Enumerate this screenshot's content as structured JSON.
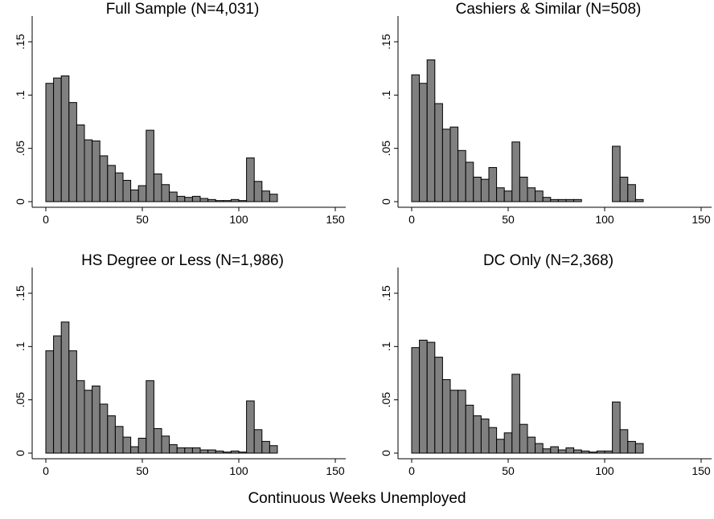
{
  "x_label": "Continuous Weeks Unemployed",
  "chart_data": [
    {
      "type": "histogram",
      "title": "Full Sample (N=4,031)",
      "color": "#808080",
      "bins": [
        0,
        4,
        8,
        12,
        16,
        20,
        24,
        28,
        32,
        36,
        40,
        44,
        48,
        52,
        56,
        60,
        64,
        68,
        72,
        76,
        80,
        84,
        88,
        92,
        96,
        100,
        104,
        108,
        112,
        116,
        120
      ],
      "values": [
        0.111,
        0.116,
        0.118,
        0.093,
        0.072,
        0.058,
        0.057,
        0.043,
        0.034,
        0.027,
        0.02,
        0.011,
        0.015,
        0.067,
        0.026,
        0.016,
        0.009,
        0.005,
        0.004,
        0.005,
        0.003,
        0.002,
        0.001,
        0.001,
        0.002,
        0.001,
        0.041,
        0.019,
        0.01,
        0.007
      ],
      "xlim": [
        0,
        150
      ],
      "xticks": [
        0,
        50,
        100,
        150
      ],
      "ylim": [
        0,
        0.15
      ],
      "yticks": [
        0,
        {
          "value": 0.05,
          "label": ".05"
        },
        {
          "value": 0.1,
          "label": ".1"
        },
        {
          "value": 0.15,
          "label": ".15"
        }
      ]
    },
    {
      "type": "histogram",
      "title": "Cashiers & Similar (N=508)",
      "color": "#808080",
      "bins": [
        0,
        4,
        8,
        12,
        16,
        20,
        24,
        28,
        32,
        36,
        40,
        44,
        48,
        52,
        56,
        60,
        64,
        68,
        72,
        76,
        80,
        84,
        88,
        92,
        96,
        100,
        104,
        108,
        112,
        116,
        120
      ],
      "values": [
        0.119,
        0.111,
        0.133,
        0.092,
        0.068,
        0.07,
        0.048,
        0.037,
        0.023,
        0.021,
        0.032,
        0.013,
        0.01,
        0.056,
        0.023,
        0.013,
        0.01,
        0.004,
        0.002,
        0.002,
        0.002,
        0.002,
        0,
        0,
        0,
        0,
        0.052,
        0.023,
        0.016,
        0.002
      ],
      "xlim": [
        0,
        150
      ],
      "xticks": [
        0,
        50,
        100,
        150
      ],
      "ylim": [
        0,
        0.15
      ],
      "yticks": [
        0,
        {
          "value": 0.05,
          "label": ".05"
        },
        {
          "value": 0.1,
          "label": ".1"
        },
        {
          "value": 0.15,
          "label": ".15"
        }
      ]
    },
    {
      "type": "histogram",
      "title": "HS Degree or Less (N=1,986)",
      "color": "#808080",
      "bins": [
        0,
        4,
        8,
        12,
        16,
        20,
        24,
        28,
        32,
        36,
        40,
        44,
        48,
        52,
        56,
        60,
        64,
        68,
        72,
        76,
        80,
        84,
        88,
        92,
        96,
        100,
        104,
        108,
        112,
        116,
        120
      ],
      "values": [
        0.096,
        0.11,
        0.123,
        0.096,
        0.068,
        0.059,
        0.063,
        0.046,
        0.035,
        0.025,
        0.015,
        0.006,
        0.014,
        0.068,
        0.023,
        0.016,
        0.008,
        0.005,
        0.005,
        0.005,
        0.003,
        0.003,
        0.002,
        0.001,
        0.002,
        0.001,
        0.049,
        0.022,
        0.011,
        0.007
      ],
      "xlim": [
        0,
        150
      ],
      "xticks": [
        0,
        50,
        100,
        150
      ],
      "ylim": [
        0,
        0.15
      ],
      "yticks": [
        0,
        {
          "value": 0.05,
          "label": ".05"
        },
        {
          "value": 0.1,
          "label": ".1"
        },
        {
          "value": 0.15,
          "label": ".15"
        }
      ]
    },
    {
      "type": "histogram",
      "title": "DC Only (N=2,368)",
      "color": "#808080",
      "bins": [
        0,
        4,
        8,
        12,
        16,
        20,
        24,
        28,
        32,
        36,
        40,
        44,
        48,
        52,
        56,
        60,
        64,
        68,
        72,
        76,
        80,
        84,
        88,
        92,
        96,
        100,
        104,
        108,
        112,
        116,
        120
      ],
      "values": [
        0.099,
        0.106,
        0.104,
        0.09,
        0.069,
        0.059,
        0.059,
        0.045,
        0.035,
        0.032,
        0.024,
        0.013,
        0.019,
        0.074,
        0.027,
        0.015,
        0.009,
        0.004,
        0.006,
        0.003,
        0.005,
        0.003,
        0.002,
        0.001,
        0.002,
        0.002,
        0.048,
        0.022,
        0.011,
        0.009
      ],
      "xlim": [
        0,
        150
      ],
      "xticks": [
        0,
        50,
        100,
        150
      ],
      "ylim": [
        0,
        0.15
      ],
      "yticks": [
        0,
        {
          "value": 0.05,
          "label": ".05"
        },
        {
          "value": 0.1,
          "label": ".1"
        },
        {
          "value": 0.15,
          "label": ".15"
        }
      ]
    }
  ]
}
